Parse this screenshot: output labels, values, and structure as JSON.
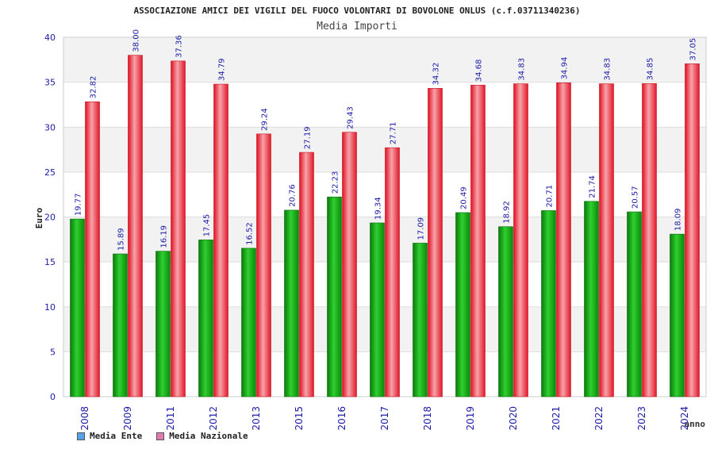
{
  "chart_data": {
    "type": "bar",
    "title": "ASSOCIAZIONE AMICI DEI VIGILI DEL FUOCO VOLONTARI DI BOVOLONE ONLUS (c.f.03711340236)",
    "subtitle": "Media Importi",
    "ylabel": "Euro",
    "xlabel": "anno",
    "ylim": [
      0,
      40
    ],
    "yticks": [
      "0",
      "5",
      "10",
      "15",
      "20",
      "25",
      "30",
      "35",
      "40"
    ],
    "categories": [
      "2008",
      "2009",
      "2011",
      "2012",
      "2013",
      "2015",
      "2016",
      "2017",
      "2018",
      "2019",
      "2020",
      "2021",
      "2022",
      "2023",
      "2024"
    ],
    "series": [
      {
        "name": "Media Ente",
        "values": [
          19.77,
          15.89,
          16.19,
          17.45,
          16.52,
          20.76,
          22.23,
          19.34,
          17.09,
          20.49,
          18.92,
          20.71,
          21.74,
          20.57,
          18.09
        ],
        "labels": [
          "19.77",
          "15.89",
          "16.19",
          "17.45",
          "16.52",
          "20.76",
          "22.23",
          "19.34",
          "17.09",
          "20.49",
          "18.92",
          "20.71",
          "21.74",
          "20.57",
          "18.09"
        ]
      },
      {
        "name": "Media Nazionale",
        "values": [
          32.82,
          38.0,
          37.36,
          34.79,
          29.24,
          27.19,
          29.43,
          27.71,
          34.32,
          34.68,
          34.83,
          34.94,
          34.83,
          34.85,
          37.05
        ],
        "labels": [
          "32.82",
          "38.00",
          "37.36",
          "34.79",
          "29.24",
          "27.19",
          "29.43",
          "27.71",
          "34.32",
          "34.68",
          "34.83",
          "34.94",
          "34.83",
          "34.85",
          "37.05"
        ]
      }
    ],
    "grid": true,
    "legend_position": "bottom-left",
    "colors": {
      "ente": "#11a811",
      "nazionale": "#e8202e",
      "ente_swatch": "#5aa0e6",
      "nazionale_swatch": "#e07ab0",
      "band": "#f2f2f2",
      "grid": "#dddddd",
      "axis_text": "#1a1aa6"
    }
  }
}
